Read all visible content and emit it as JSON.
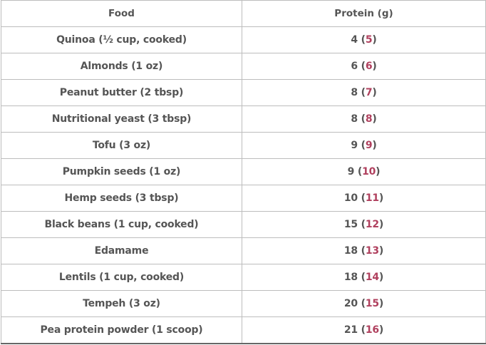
{
  "table": {
    "headers": [
      "Food",
      "Protein (g)"
    ],
    "rows": [
      {
        "food": "Quinoa (½ cup, cooked)",
        "protein": "4",
        "rank": "5"
      },
      {
        "food": "Almonds (1 oz)",
        "protein": "6",
        "rank": "6"
      },
      {
        "food": "Peanut butter (2 tbsp)",
        "protein": "8",
        "rank": "7"
      },
      {
        "food": "Nutritional yeast (3 tbsp)",
        "protein": "8",
        "rank": "8"
      },
      {
        "food": "Tofu (3 oz)",
        "protein": "9",
        "rank": "9"
      },
      {
        "food": "Pumpkin seeds (1 oz)",
        "protein": "9",
        "rank": "10"
      },
      {
        "food": "Hemp seeds (3 tbsp)",
        "protein": "10",
        "rank": "11"
      },
      {
        "food": "Black beans (1 cup, cooked)",
        "protein": "15",
        "rank": "12"
      },
      {
        "food": "Edamame",
        "protein": "18",
        "rank": "13"
      },
      {
        "food": "Lentils (1 cup, cooked)",
        "protein": "18",
        "rank": "14"
      },
      {
        "food": "Tempeh (3 oz)",
        "protein": "20",
        "rank": "15"
      },
      {
        "food": "Pea protein powder (1 scoop)",
        "protein": "21",
        "rank": "16"
      }
    ]
  },
  "colors": {
    "text": "#555555",
    "paren_number": "#b0405e",
    "border": "#bdbdbd"
  }
}
